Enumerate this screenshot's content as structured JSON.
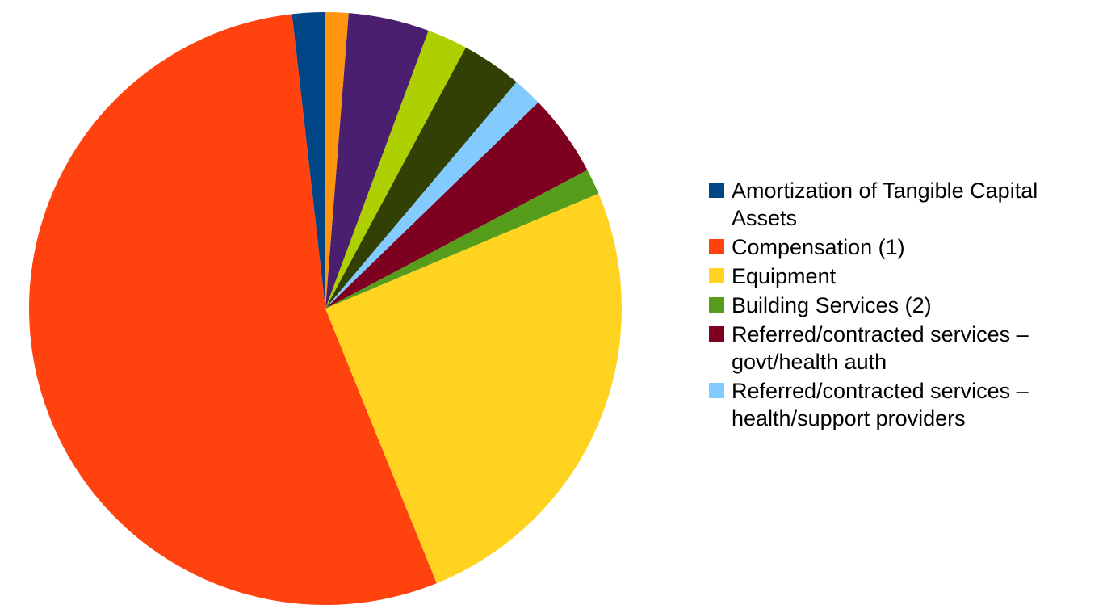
{
  "chart_data": {
    "type": "pie",
    "direction": "counterclockwise",
    "categories": [
      "Amortization of Tangible Capital Assets",
      "Compensation (1)",
      "Equipment",
      "Building Services (2)",
      "Referred/contracted services – govt/health auth",
      "Referred/contracted services – health/support providers",
      null,
      null,
      null,
      null
    ],
    "values": [
      1.8,
      54.3,
      25.2,
      1.4,
      4.5,
      1.6,
      3.3,
      2.2,
      4.4,
      1.25
    ],
    "colors": [
      "#004586",
      "#ff420e",
      "#ffd320",
      "#579d1c",
      "#7e0021",
      "#83caff",
      "#314004",
      "#aecf00",
      "#4b1f6f",
      "#ff950e"
    ]
  }
}
